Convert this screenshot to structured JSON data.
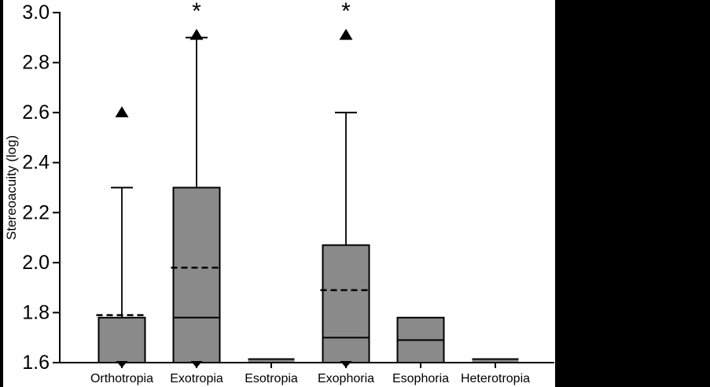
{
  "figure": {
    "background": "#ffffff",
    "side_panel_color": "#000000"
  },
  "chart_data": {
    "type": "boxplot",
    "title": "",
    "xlabel": "",
    "ylabel": "Stereoacuity (log)",
    "ylim": [
      1.6,
      3.0
    ],
    "yticks": [
      1.6,
      1.8,
      2.0,
      2.2,
      2.4,
      2.6,
      2.8,
      3.0
    ],
    "grid": false,
    "legend": "none",
    "categories": [
      "Orthotropia",
      "Exotropia",
      "Esotropia",
      "Exophoria",
      "Esophoria",
      "Heterotropia"
    ],
    "box_fill": "#8a8a8a",
    "line_color": "#000000",
    "boxes": [
      {
        "category": "Orthotropia",
        "q1": 1.6,
        "q3": 1.78,
        "median": 1.6,
        "mean": 1.79,
        "whisker_high": 2.3,
        "outlier_triangles": [
          2.6
        ],
        "floor_marker": true,
        "significance": ""
      },
      {
        "category": "Exotropia",
        "q1": 1.6,
        "q3": 2.3,
        "median": 1.78,
        "mean": 1.98,
        "whisker_high": 2.9,
        "outlier_triangles": [
          2.91
        ],
        "floor_marker": true,
        "significance": "*"
      },
      {
        "category": "Esotropia",
        "q1": 1.6,
        "q3": 1.6,
        "median": 1.6,
        "mean": null,
        "whisker_high": null,
        "outlier_triangles": [],
        "floor_marker": false,
        "significance": ""
      },
      {
        "category": "Exophoria",
        "q1": 1.6,
        "q3": 2.07,
        "median": 1.7,
        "mean": 1.89,
        "whisker_high": 2.6,
        "outlier_triangles": [
          2.91
        ],
        "floor_marker": true,
        "significance": "*"
      },
      {
        "category": "Esophoria",
        "q1": 1.6,
        "q3": 1.78,
        "median": 1.69,
        "mean": null,
        "whisker_high": null,
        "outlier_triangles": [],
        "floor_marker": false,
        "significance": ""
      },
      {
        "category": "Heterotropia",
        "q1": 1.6,
        "q3": 1.6,
        "median": 1.6,
        "mean": null,
        "whisker_high": null,
        "outlier_triangles": [],
        "floor_marker": false,
        "significance": ""
      }
    ]
  }
}
